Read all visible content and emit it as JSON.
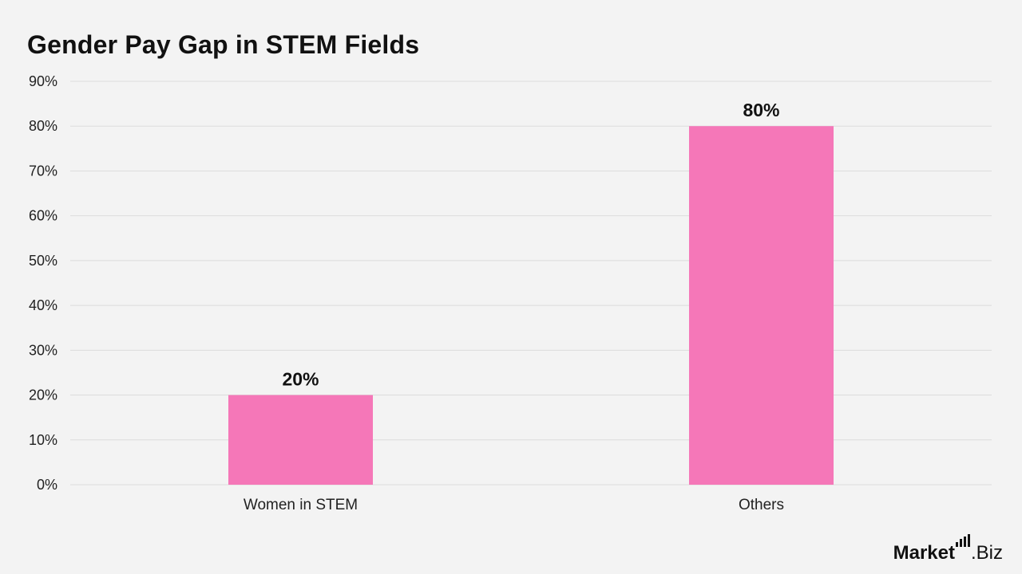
{
  "colors": {
    "background": "#f3f3f3",
    "bar": "#f577b8",
    "grid": "#dcdcdc",
    "text": "#111111"
  },
  "chart_data": {
    "type": "bar",
    "title": "Gender Pay Gap in STEM Fields",
    "categories": [
      "Women in STEM",
      "Others"
    ],
    "values": [
      20,
      80
    ],
    "value_labels": [
      "20%",
      "80%"
    ],
    "ylim": [
      0,
      90
    ],
    "yticks": [
      0,
      10,
      20,
      30,
      40,
      50,
      60,
      70,
      80,
      90
    ],
    "ytick_labels": [
      "0%",
      "10%",
      "20%",
      "30%",
      "40%",
      "50%",
      "60%",
      "70%",
      "80%",
      "90%"
    ],
    "grid": true,
    "legend": "none"
  },
  "brand": {
    "market": "Market",
    "suffix": ".Biz"
  }
}
